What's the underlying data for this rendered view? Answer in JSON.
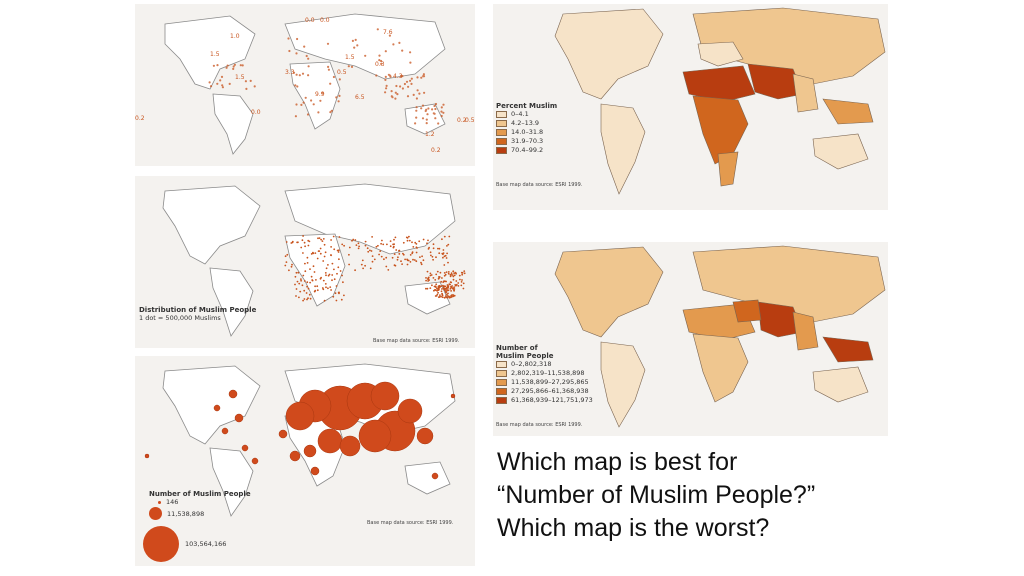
{
  "colors": {
    "land": "#ffffff",
    "coast": "#8a8a8a",
    "dot": "#c8541e",
    "circle": "#d04a1c",
    "class1": "#f6e3c8",
    "class2": "#efc68f",
    "class3": "#e39a4e",
    "class4": "#d0661e",
    "class5": "#b83d10"
  },
  "map_values": {
    "labels": [
      "1.0",
      "0.0",
      "0.0",
      "7.6",
      "1.5",
      "0.5",
      "0.3",
      "4.3",
      "1.5",
      "0.2",
      "0.2",
      "1.2",
      "0.2",
      "0.5",
      "0.0",
      "1.5",
      "9.9",
      "3.3",
      "6.5"
    ]
  },
  "dot_map": {
    "legend_title": "Distribution of Muslim People",
    "legend_subtitle": "1 dot = 500,000 Muslims",
    "source": "Base map data source: ESRI 1999."
  },
  "prop_map": {
    "legend_title": "Number of Muslim People",
    "values": [
      "146",
      "11,538,898",
      "103,564,166"
    ],
    "source": "Base map data source: ESRI 1999."
  },
  "percent_map": {
    "legend_title": "Percent Muslim",
    "classes": [
      "0–4.1",
      "4.2–13.9",
      "14.0–31.8",
      "31.9–70.3",
      "70.4–99.2"
    ],
    "source": "Base map data source: ESRI 1999."
  },
  "number_map": {
    "legend_title_line1": "Number of",
    "legend_title_line2": "Muslim People",
    "classes": [
      "0–2,802,318",
      "2,802,319–11,538,898",
      "11,538,899–27,295,865",
      "27,295,866–61,368,938",
      "61,368,939–121,751,973"
    ],
    "source": "Base map data source: ESRI 1999."
  },
  "question": {
    "line1": "Which map is best for",
    "line2": "“Number of Muslim People?”",
    "line3": "Which map is the worst?"
  }
}
